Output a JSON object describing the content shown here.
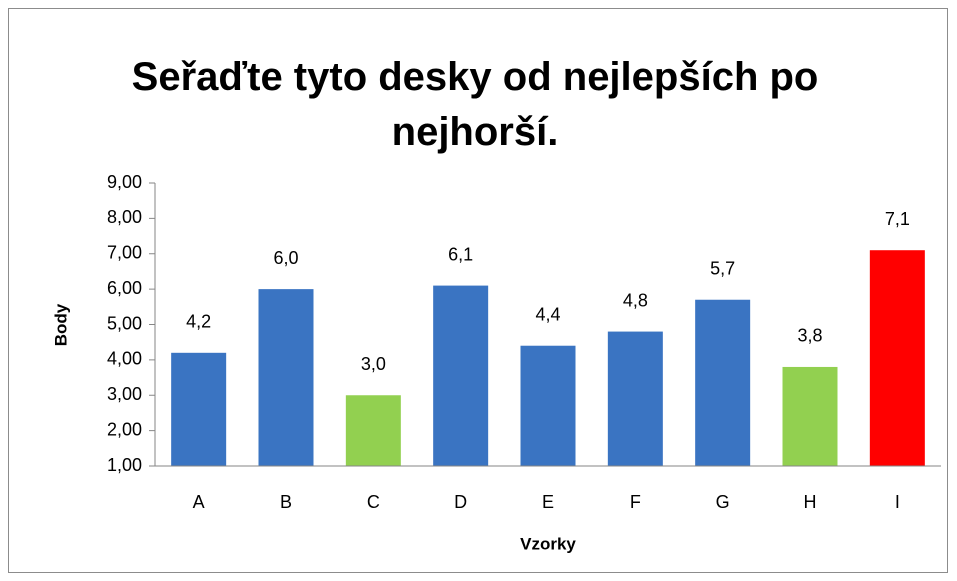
{
  "chart_data": {
    "type": "bar",
    "title": "Seřaďte tyto desky od nejlepších po nejhorší.",
    "x_label": "Vzorky",
    "y_label": "Body",
    "categories": [
      "A",
      "B",
      "C",
      "D",
      "E",
      "F",
      "G",
      "H",
      "I"
    ],
    "values": [
      4.2,
      6.0,
      3.0,
      6.1,
      4.4,
      4.8,
      5.7,
      3.8,
      7.1
    ],
    "value_labels": [
      "4,2",
      "6,0",
      "3,0",
      "6,1",
      "4,4",
      "4,8",
      "5,7",
      "3,8",
      "7,1"
    ],
    "colors": [
      "#3a74c2",
      "#3a74c2",
      "#92d050",
      "#3a74c2",
      "#3a74c2",
      "#3a74c2",
      "#3a74c2",
      "#92d050",
      "#ff0000"
    ],
    "ylim": [
      1,
      9
    ],
    "yticks": [
      {
        "value": 1,
        "label": "1,00"
      },
      {
        "value": 2,
        "label": "2,00"
      },
      {
        "value": 3,
        "label": "3,00"
      },
      {
        "value": 4,
        "label": "4,00"
      },
      {
        "value": 5,
        "label": "5,00"
      },
      {
        "value": 6,
        "label": "6,00"
      },
      {
        "value": 7,
        "label": "7,00"
      },
      {
        "value": 8,
        "label": "8,00"
      },
      {
        "value": 9,
        "label": "9,00"
      }
    ],
    "grid": false
  }
}
